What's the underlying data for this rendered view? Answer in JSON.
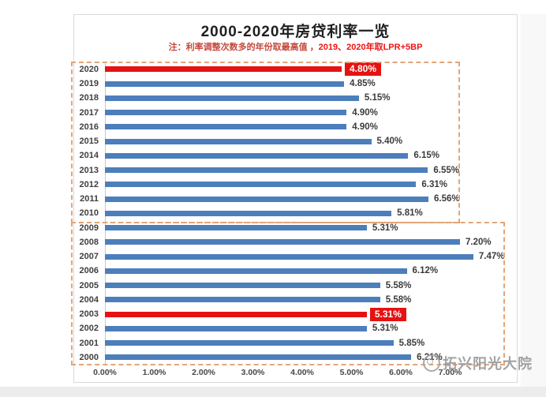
{
  "chart": {
    "title": "2000-2020年房贷利率一览",
    "note_prefix": "注：利率调整次数多的年份取最高值 ，",
    "note_highlight": "2019、2020年取LPR+5BP",
    "note_prefix_color": "#c4483c",
    "note_highlight_color": "#ed1515"
  },
  "watermark": {
    "text": "拓兴阳光大院",
    "icon": "circle-logo-icon",
    "color": "#9b9b9b"
  },
  "chart_data": {
    "type": "bar",
    "orientation": "horizontal",
    "title": "2000-2020年房贷利率一览",
    "note": "注：利率调整次数多的年份取最高值 ，2019、2020年取LPR+5BP",
    "categories": [
      "2020",
      "2019",
      "2018",
      "2017",
      "2016",
      "2015",
      "2014",
      "2013",
      "2012",
      "2011",
      "2010",
      "2009",
      "2008",
      "2007",
      "2006",
      "2005",
      "2004",
      "2003",
      "2002",
      "2001",
      "2000"
    ],
    "values": [
      4.8,
      4.85,
      5.15,
      4.9,
      4.9,
      5.4,
      6.15,
      6.55,
      6.31,
      6.56,
      5.81,
      5.31,
      7.2,
      7.47,
      6.12,
      5.58,
      5.58,
      5.31,
      5.31,
      5.85,
      6.21
    ],
    "value_labels": [
      "4.80%",
      "4.85%",
      "5.15%",
      "4.90%",
      "4.90%",
      "5.40%",
      "6.15%",
      "6.55%",
      "6.31%",
      "6.56%",
      "5.81%",
      "5.31%",
      "7.20%",
      "7.47%",
      "6.12%",
      "5.58%",
      "5.58%",
      "5.31%",
      "5.31%",
      "5.85%",
      "6.21%"
    ],
    "highlighted_categories": [
      "2020",
      "2003"
    ],
    "bar_color": "#4d7ebc",
    "highlight_bar_color": "#e51212",
    "group_boxes": [
      {
        "covers": "2020-2010"
      },
      {
        "covers": "2009-2000"
      }
    ],
    "group_box_color": "#e3a578",
    "x_ticks": [
      "0.00%",
      "1.00%",
      "2.00%",
      "3.00%",
      "4.00%",
      "5.00%",
      "6.00%",
      "7.00%"
    ],
    "xlabel": "",
    "ylabel": "",
    "xlim": [
      0,
      8.3
    ],
    "grid": false,
    "legend": false
  }
}
